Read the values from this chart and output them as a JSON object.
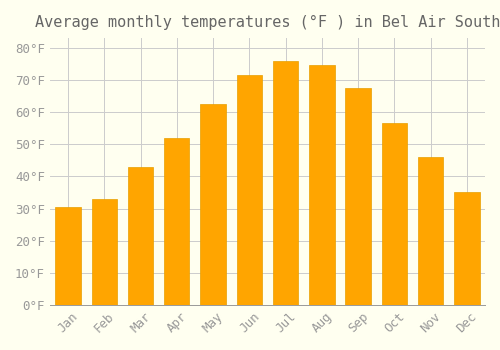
{
  "title": "Average monthly temperatures (°F ) in Bel Air South",
  "months": [
    "Jan",
    "Feb",
    "Mar",
    "Apr",
    "May",
    "Jun",
    "Jul",
    "Aug",
    "Sep",
    "Oct",
    "Nov",
    "Dec"
  ],
  "values": [
    30.5,
    33.0,
    43.0,
    52.0,
    62.5,
    71.5,
    76.0,
    74.5,
    67.5,
    56.5,
    46.0,
    35.0
  ],
  "bar_color": "#FFA500",
  "bar_edge_color": "#E8A000",
  "ylim": [
    0,
    83
  ],
  "yticks": [
    0,
    10,
    20,
    30,
    40,
    50,
    60,
    70,
    80
  ],
  "ytick_labels": [
    "0°F",
    "10°F",
    "20°F",
    "30°F",
    "40°F",
    "50°F",
    "60°F",
    "70°F",
    "80°F"
  ],
  "background_color": "#FFFFF0",
  "grid_color": "#CCCCCC",
  "title_fontsize": 11,
  "tick_fontsize": 9,
  "font_family": "monospace"
}
